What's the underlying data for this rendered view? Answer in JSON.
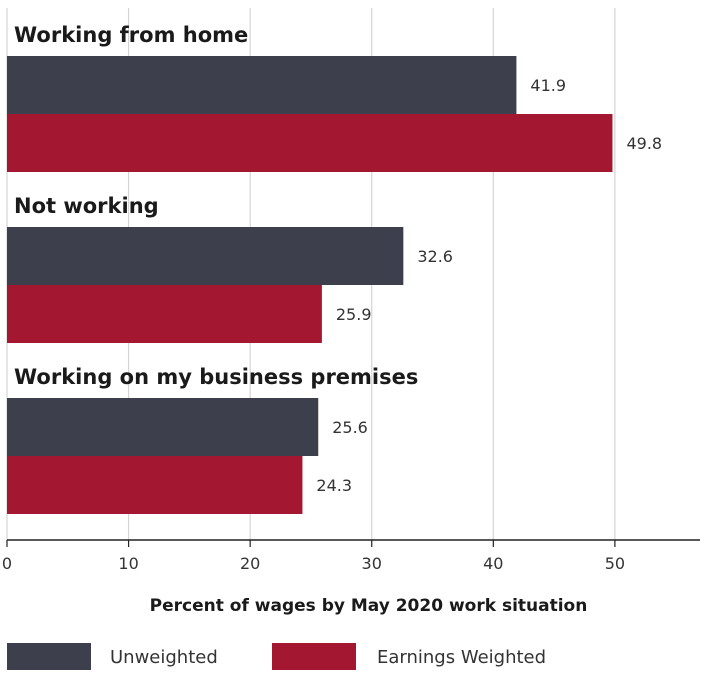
{
  "chart_data": {
    "type": "bar",
    "orientation": "horizontal",
    "categories": [
      "Working from home",
      "Not working",
      "Working on my business premises"
    ],
    "series": [
      {
        "name": "Unweighted",
        "values": [
          41.9,
          32.6,
          25.6
        ],
        "color": "#3d3f4c"
      },
      {
        "name": "Earnings Weighted",
        "values": [
          49.8,
          25.9,
          24.3
        ],
        "color": "#a31730"
      }
    ],
    "value_labels": [
      [
        "41.9",
        "32.6",
        "25.6"
      ],
      [
        "49.8",
        "25.9",
        "24.3"
      ]
    ],
    "xlabel": "Percent of wages by May 2020 work situation",
    "xlim": [
      0,
      57
    ],
    "xticks": [
      0,
      10,
      20,
      30,
      40,
      50
    ],
    "xtick_labels": [
      "0",
      "10",
      "20",
      "30",
      "40",
      "50"
    ],
    "grid": "vertical",
    "legend_position": "bottom"
  }
}
